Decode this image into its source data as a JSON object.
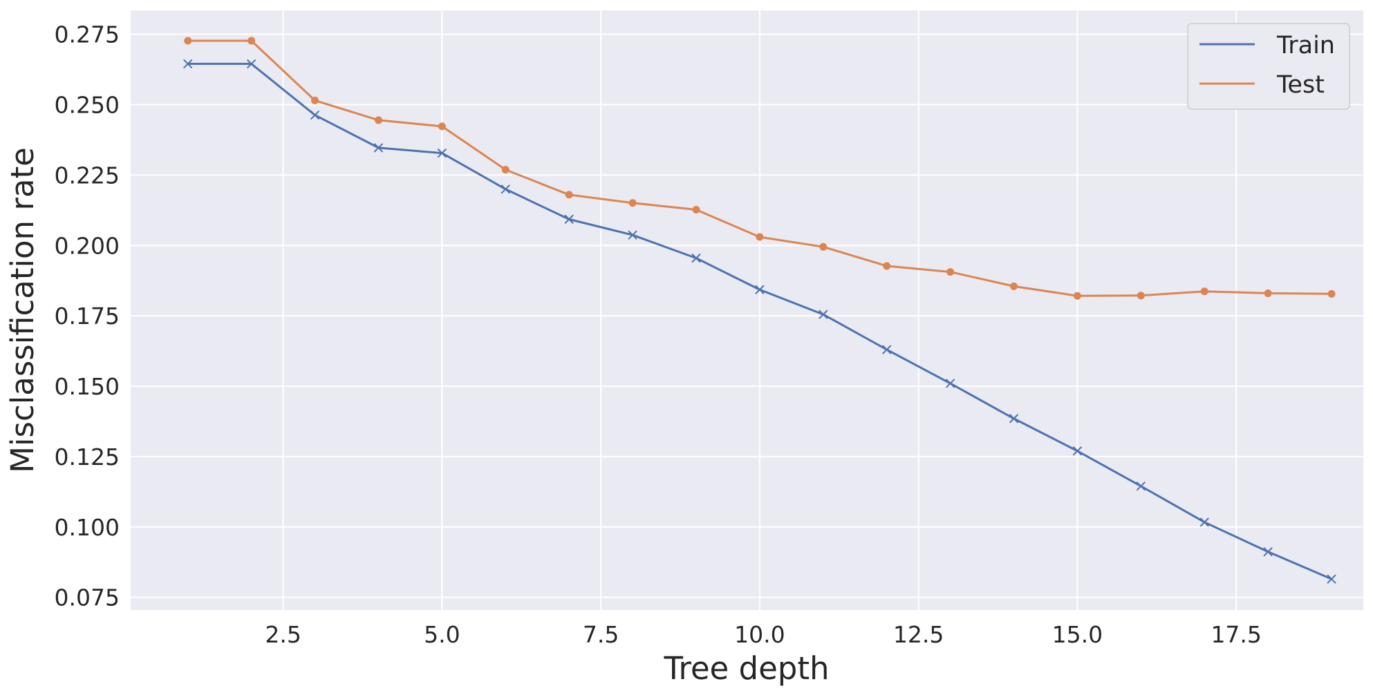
{
  "chart_data": {
    "type": "line",
    "title": "",
    "xlabel": "Tree depth",
    "ylabel": "Misclassification rate",
    "xlim": [
      0.1,
      19.5
    ],
    "ylim": [
      0.0705,
      0.2835
    ],
    "xticks": [
      2.5,
      5.0,
      7.5,
      10.0,
      12.5,
      15.0,
      17.5
    ],
    "xtick_labels": [
      "2.5",
      "5.0",
      "7.5",
      "10.0",
      "12.5",
      "15.0",
      "17.5"
    ],
    "yticks": [
      0.075,
      0.1,
      0.125,
      0.15,
      0.175,
      0.2,
      0.225,
      0.25,
      0.275
    ],
    "ytick_labels": [
      "0.075",
      "0.100",
      "0.125",
      "0.150",
      "0.175",
      "0.200",
      "0.225",
      "0.250",
      "0.275"
    ],
    "grid": true,
    "legend_position": "top-right",
    "x": [
      1,
      2,
      3,
      4,
      5,
      6,
      7,
      8,
      9,
      10,
      11,
      12,
      13,
      14,
      15,
      16,
      17,
      18,
      19
    ],
    "series": [
      {
        "name": "Train",
        "color": "#4c72b0",
        "marker": "x",
        "values": [
          0.2645,
          0.2645,
          0.2463,
          0.2347,
          0.2328,
          0.22,
          0.2093,
          0.2037,
          0.1955,
          0.1843,
          0.1755,
          0.163,
          0.151,
          0.1385,
          0.127,
          0.1145,
          0.1017,
          0.0912,
          0.0815
        ]
      },
      {
        "name": "Test",
        "color": "#dd8452",
        "marker": "o",
        "values": [
          0.2727,
          0.2727,
          0.2515,
          0.2445,
          0.2423,
          0.2269,
          0.218,
          0.2151,
          0.2127,
          0.203,
          0.1995,
          0.1927,
          0.1906,
          0.1855,
          0.1821,
          0.1822,
          0.1837,
          0.183,
          0.1828
        ]
      }
    ]
  },
  "colors": {
    "plot_background": "#eaeaf2",
    "grid": "#ffffff",
    "text": "#262626"
  }
}
